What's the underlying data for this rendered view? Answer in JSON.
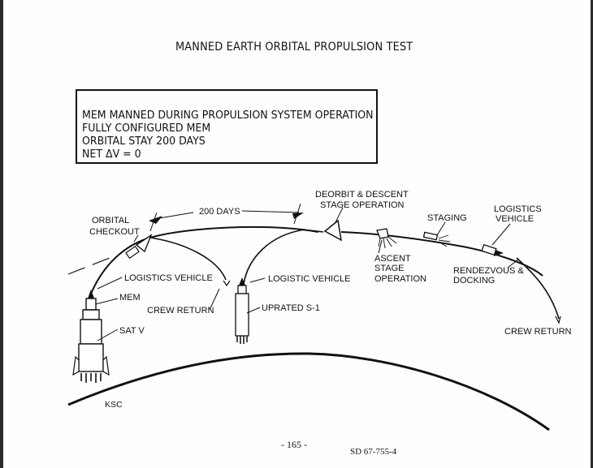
{
  "title": "MANNED EARTH ORBITAL PROPULSION TEST",
  "mission_box": {
    "lines": [
      "MEM MANNED DURING PROPULSION SYSTEM OPERATION",
      "FULLY CONFIGURED MEM",
      "ORBITAL STAY 200 DAYS",
      "NET ΔV = 0"
    ]
  },
  "labels": {
    "orbital_checkout_1": "ORBITAL",
    "orbital_checkout_2": "CHECKOUT",
    "days": "200 DAYS",
    "deorbit_1": "DEORBIT & DESCENT",
    "deorbit_2": "STAGE OPERATION",
    "staging": "STAGING",
    "logistics_vehicle_1": "LOGISTICS",
    "logistics_vehicle_2": "VEHICLE",
    "ascent_1": "ASCENT",
    "ascent_2": "STAGE",
    "ascent_3": "OPERATION",
    "rendezvous_1": "RENDEZVOUS &",
    "rendezvous_2": "DOCKING",
    "logistics_vehicle_left": "LOGISTICS  VEHICLE",
    "logistic_vehicle_mid": "LOGISTIC VEHICLE",
    "mem": "MEM",
    "crew_return_left": "CREW RETURN",
    "uprated_s1": "UPRATED S-1",
    "sat_v": "SAT V",
    "crew_return_right": "CREW RETURN",
    "ksc": "KSC"
  },
  "footer": {
    "page_number": "- 165 -",
    "doc_id": "SD 67-755-4"
  }
}
